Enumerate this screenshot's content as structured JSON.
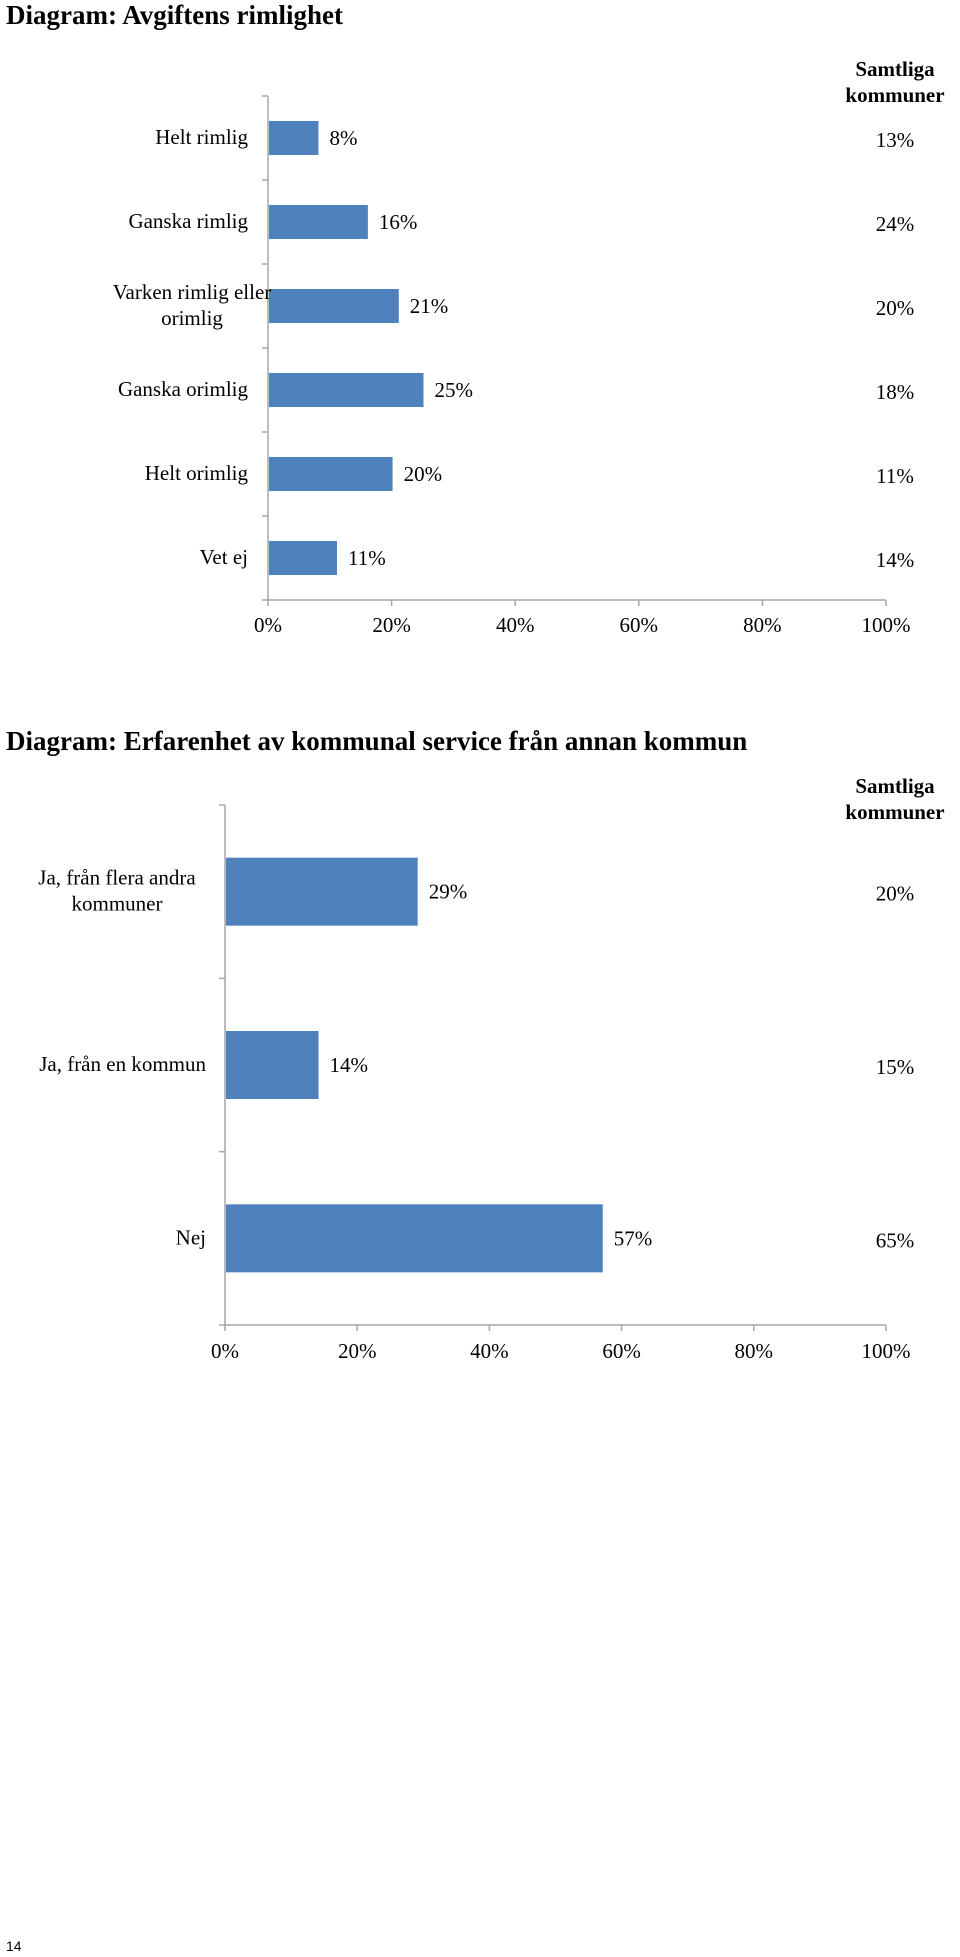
{
  "page_number": "14",
  "chart_data": [
    {
      "type": "bar",
      "orientation": "horizontal",
      "title": "Diagram: Avgiftens rimlighet",
      "categories": [
        [
          "Helt rimlig"
        ],
        [
          "Ganska rimlig"
        ],
        [
          "Varken rimlig eller",
          "orimlig"
        ],
        [
          "Ganska orimlig"
        ],
        [
          "Helt orimlig"
        ],
        [
          "Vet ej"
        ]
      ],
      "values": [
        8,
        16,
        21,
        25,
        20,
        11
      ],
      "value_labels": [
        "8%",
        "16%",
        "21%",
        "25%",
        "20%",
        "11%"
      ],
      "comparison_header": [
        "Samtliga",
        "kommuner"
      ],
      "comparison_labels": [
        "13%",
        "24%",
        "20%",
        "18%",
        "11%",
        "14%"
      ],
      "xlim": [
        0,
        100
      ],
      "x_ticks": [
        "0%",
        "20%",
        "40%",
        "60%",
        "80%",
        "100%"
      ],
      "bar_color": "#4F81BD"
    },
    {
      "type": "bar",
      "orientation": "horizontal",
      "title": "Diagram: Erfarenhet av kommunal service från annan kommun",
      "categories": [
        [
          "Ja, från flera andra",
          "kommuner"
        ],
        [
          "Ja, från en kommun"
        ],
        [
          "Nej"
        ]
      ],
      "values": [
        29,
        14,
        57
      ],
      "value_labels": [
        "29%",
        "14%",
        "57%"
      ],
      "comparison_header": [
        "Samtliga",
        "kommuner"
      ],
      "comparison_labels": [
        "20%",
        "15%",
        "65%"
      ],
      "xlim": [
        0,
        100
      ],
      "x_ticks": [
        "0%",
        "20%",
        "40%",
        "60%",
        "80%",
        "100%"
      ],
      "bar_color": "#4F81BD"
    }
  ]
}
